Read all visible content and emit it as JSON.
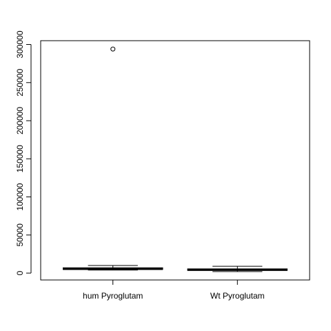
{
  "chart_data": {
    "type": "boxplot",
    "title": "",
    "xlabel": "",
    "ylabel": "",
    "ylim": [
      -9000,
      305000
    ],
    "yticks": [
      0,
      50000,
      100000,
      150000,
      200000,
      250000,
      300000
    ],
    "ytick_labels": [
      "0",
      "50000",
      "100000",
      "150000",
      "200000",
      "250000",
      "300000"
    ],
    "categories": [
      "hum Pyroglutam",
      "Wt Pyroglutam"
    ],
    "boxes": [
      {
        "label": "hum Pyroglutam",
        "whisker_low": 4000,
        "q1": 4800,
        "median": 5600,
        "q3": 7000,
        "whisker_high": 10000,
        "outliers": [
          294000
        ]
      },
      {
        "label": "Wt Pyroglutam",
        "whisker_low": 2000,
        "q1": 3500,
        "median": 4400,
        "q3": 5600,
        "whisker_high": 9000,
        "outliers": []
      }
    ],
    "grid": false,
    "legend": "none"
  }
}
